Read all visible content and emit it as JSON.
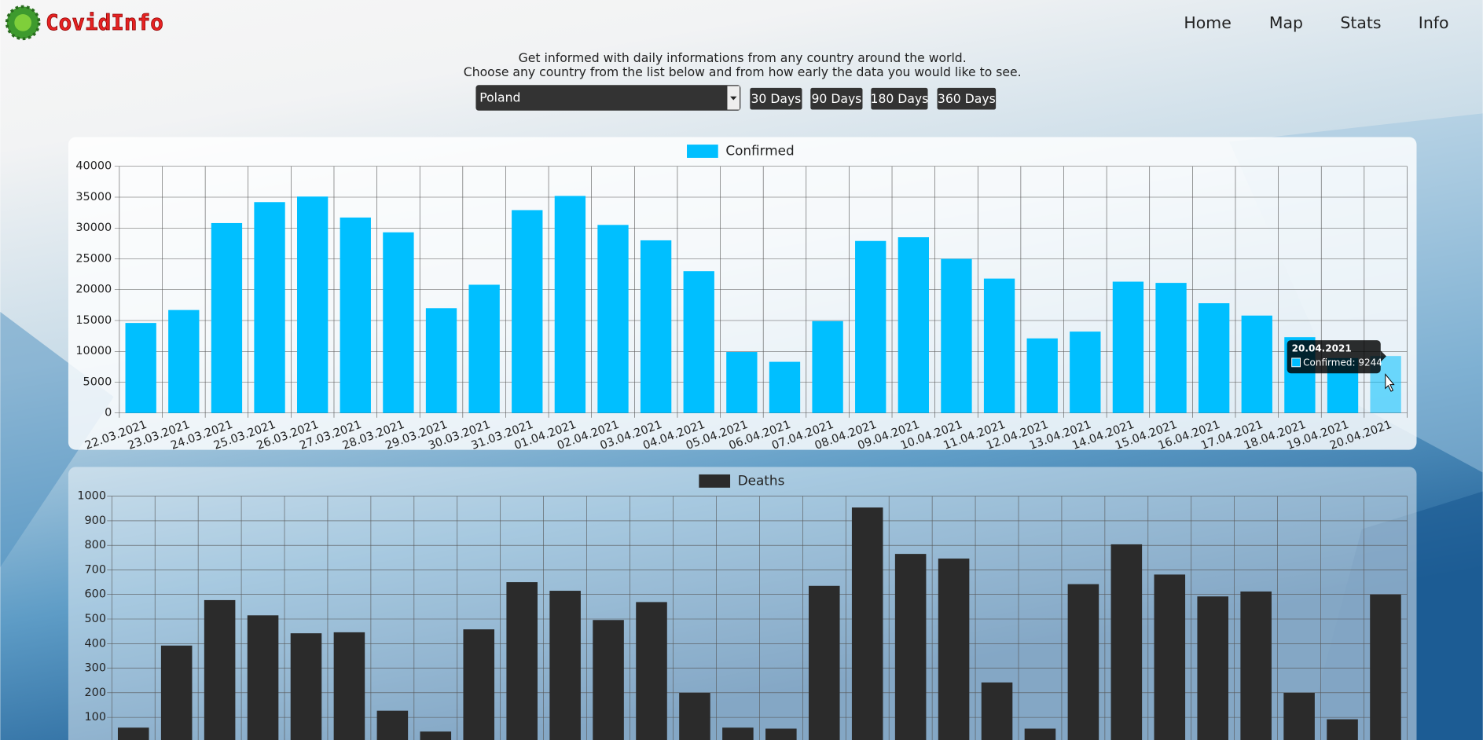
{
  "header": {
    "brand": "CovidInfo",
    "nav": [
      "Home",
      "Map",
      "Stats",
      "Info"
    ]
  },
  "intro": [
    "Get informed with daily informations from any country around the world.",
    "Choose any country from the list below and from how early the data you would like to see."
  ],
  "controls": {
    "country": "Poland",
    "ranges": [
      "30 Days",
      "90 Days",
      "180 Days",
      "360 Days"
    ]
  },
  "tooltip": {
    "title": "20.04.2021",
    "label": "Confirmed: 9244"
  },
  "chart_data": [
    {
      "type": "bar",
      "categories": [
        "22.03.2021",
        "23.03.2021",
        "24.03.2021",
        "25.03.2021",
        "26.03.2021",
        "27.03.2021",
        "28.03.2021",
        "29.03.2021",
        "30.03.2021",
        "31.03.2021",
        "01.04.2021",
        "02.04.2021",
        "03.04.2021",
        "04.04.2021",
        "05.04.2021",
        "06.04.2021",
        "07.04.2021",
        "08.04.2021",
        "09.04.2021",
        "10.04.2021",
        "11.04.2021",
        "12.04.2021",
        "13.04.2021",
        "14.04.2021",
        "15.04.2021",
        "16.04.2021",
        "17.04.2021",
        "18.04.2021",
        "19.04.2021",
        "20.04.2021"
      ],
      "series": [
        {
          "name": "Confirmed",
          "color": "#00bfff",
          "values": [
            14600,
            16700,
            30800,
            34200,
            35100,
            31700,
            29300,
            17000,
            20800,
            32900,
            35200,
            30500,
            28000,
            23000,
            9900,
            8300,
            14900,
            27900,
            28500,
            25000,
            21800,
            12100,
            13200,
            21300,
            21100,
            17800,
            15800,
            12300,
            8900,
            9244
          ]
        }
      ],
      "ylim": [
        0,
        40000
      ],
      "yticks": [
        0,
        5000,
        10000,
        15000,
        20000,
        25000,
        30000,
        35000,
        40000
      ],
      "grid": true
    },
    {
      "type": "bar",
      "series": [
        {
          "name": "Deaths",
          "color": "#2b2b2b",
          "values": [
            58,
            392,
            577,
            515,
            442,
            446,
            127,
            42,
            458,
            650,
            615,
            496,
            569,
            200,
            58,
            54,
            635,
            954,
            765,
            746,
            242,
            54,
            642,
            804,
            681,
            592,
            612,
            200,
            92,
            600
          ]
        }
      ],
      "ylim": [
        0,
        1000
      ],
      "yticks": [
        100,
        200,
        300,
        400,
        500,
        600,
        700,
        800,
        900,
        1000
      ],
      "grid": true
    }
  ]
}
